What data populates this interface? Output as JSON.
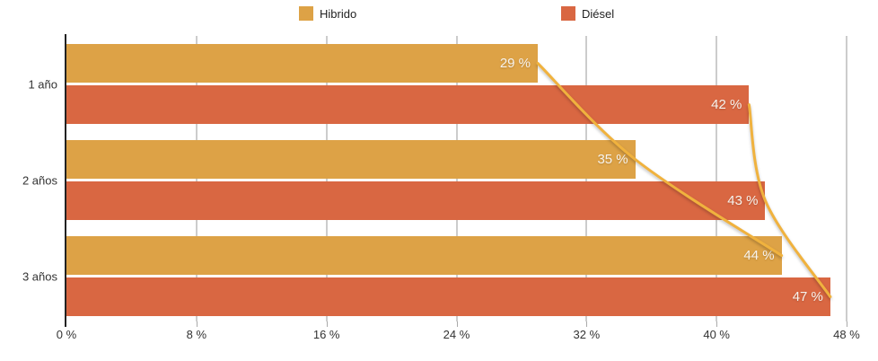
{
  "chart_data": {
    "type": "bar",
    "orientation": "horizontal",
    "categories": [
      "1 año",
      "2 años",
      "3 años"
    ],
    "series": [
      {
        "name": "Hibrido",
        "color": "#DDA246",
        "values": [
          29,
          35,
          44
        ],
        "value_labels": [
          "29 %",
          "35 %",
          "44 %"
        ]
      },
      {
        "name": "Diésel",
        "color": "#D96742",
        "values": [
          42,
          43,
          47
        ],
        "value_labels": [
          "42 %",
          "43 %",
          "47 %"
        ]
      }
    ],
    "x_axis": {
      "tick_values": [
        0,
        8,
        16,
        24,
        32,
        40,
        48
      ],
      "tick_labels": [
        "0 %",
        "8 %",
        "16 %",
        "24 %",
        "32 %",
        "40 %",
        "48 %"
      ],
      "max": 48
    },
    "legend": {
      "position": "top",
      "items": [
        "Hibrido",
        "Diésel"
      ]
    },
    "grid": true,
    "trend_lines": {
      "color": "#F0B23E",
      "description": "smooth curve through the end points of each series' bars",
      "series_points": [
        [
          29,
          35,
          44
        ],
        [
          42,
          43,
          47
        ]
      ]
    }
  },
  "colors": {
    "hibrido": "#DDA246",
    "diesel": "#D96742",
    "curve": "#F0B23E",
    "grid": "#cccccc",
    "axis": "#222222",
    "tick_text": "#333333",
    "value_text": "#f7f3ed"
  }
}
